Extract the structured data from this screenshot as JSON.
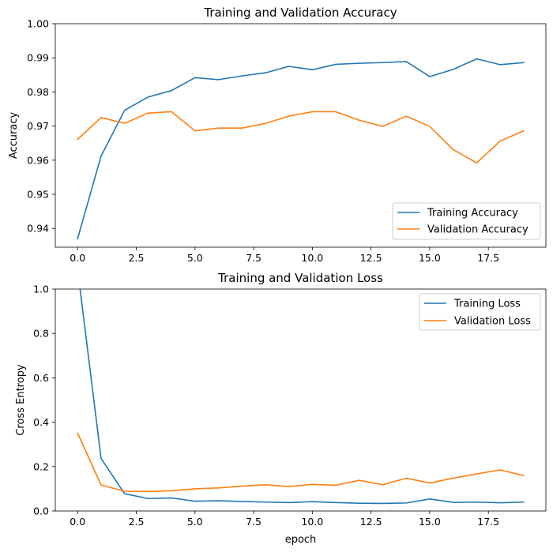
{
  "chart_data": [
    {
      "type": "line",
      "title": "Training and Validation Accuracy",
      "xlabel": "",
      "ylabel": "Accuracy",
      "xlim": [
        -0.95,
        19.95
      ],
      "ylim": [
        0.9345,
        1.0
      ],
      "xticks": [
        0.0,
        2.5,
        5.0,
        7.5,
        10.0,
        12.5,
        15.0,
        17.5
      ],
      "xtick_labels": [
        "0.0",
        "2.5",
        "5.0",
        "7.5",
        "10.0",
        "12.5",
        "15.0",
        "17.5"
      ],
      "yticks": [
        0.94,
        0.95,
        0.96,
        0.97,
        0.98,
        0.99,
        1.0
      ],
      "ytick_labels": [
        "0.94",
        "0.95",
        "0.96",
        "0.97",
        "0.98",
        "0.99",
        "1.00"
      ],
      "legend": "lower right",
      "grid": false,
      "x": [
        0,
        1,
        2,
        3,
        4,
        5,
        6,
        7,
        8,
        9,
        10,
        11,
        12,
        13,
        14,
        15,
        16,
        17,
        18,
        19
      ],
      "series": [
        {
          "name": "Training Accuracy",
          "color": "#1f77b4",
          "values": [
            0.937,
            0.9612,
            0.9746,
            0.9785,
            0.9804,
            0.9842,
            0.9836,
            0.9847,
            0.9856,
            0.9875,
            0.9865,
            0.9881,
            0.9884,
            0.9886,
            0.9889,
            0.9845,
            0.9866,
            0.9897,
            0.988,
            0.9886
          ]
        },
        {
          "name": "Validation Accuracy",
          "color": "#ff7f0e",
          "values": [
            0.9661,
            0.9725,
            0.9708,
            0.9738,
            0.9742,
            0.9686,
            0.9694,
            0.9694,
            0.9708,
            0.9729,
            0.9742,
            0.9742,
            0.9717,
            0.9699,
            0.9729,
            0.9699,
            0.9631,
            0.9592,
            0.9656,
            0.9686
          ]
        }
      ]
    },
    {
      "type": "line",
      "title": "Training and Validation Loss",
      "xlabel": "epoch",
      "ylabel": "Cross Entropy",
      "xlim": [
        -0.95,
        19.95
      ],
      "ylim": [
        0.0,
        1.0
      ],
      "xticks": [
        0.0,
        2.5,
        5.0,
        7.5,
        10.0,
        12.5,
        15.0,
        17.5
      ],
      "xtick_labels": [
        "0.0",
        "2.5",
        "5.0",
        "7.5",
        "10.0",
        "12.5",
        "15.0",
        "17.5"
      ],
      "yticks": [
        0.0,
        0.2,
        0.4,
        0.6,
        0.8,
        1.0
      ],
      "ytick_labels": [
        "0.0",
        "0.2",
        "0.4",
        "0.6",
        "0.8",
        "1.0"
      ],
      "legend": "upper right",
      "grid": false,
      "x": [
        0,
        1,
        2,
        3,
        4,
        5,
        6,
        7,
        8,
        9,
        10,
        11,
        12,
        13,
        14,
        15,
        16,
        17,
        18,
        19
      ],
      "series": [
        {
          "name": "Training Loss",
          "color": "#1f77b4",
          "values": [
            1.09,
            0.237,
            0.078,
            0.056,
            0.059,
            0.044,
            0.046,
            0.043,
            0.04,
            0.038,
            0.042,
            0.038,
            0.035,
            0.034,
            0.036,
            0.054,
            0.039,
            0.04,
            0.037,
            0.04
          ]
        },
        {
          "name": "Validation Loss",
          "color": "#ff7f0e",
          "values": [
            0.351,
            0.117,
            0.089,
            0.088,
            0.091,
            0.1,
            0.104,
            0.112,
            0.118,
            0.11,
            0.12,
            0.116,
            0.138,
            0.118,
            0.148,
            0.126,
            0.148,
            0.167,
            0.185,
            0.16
          ]
        }
      ]
    }
  ]
}
